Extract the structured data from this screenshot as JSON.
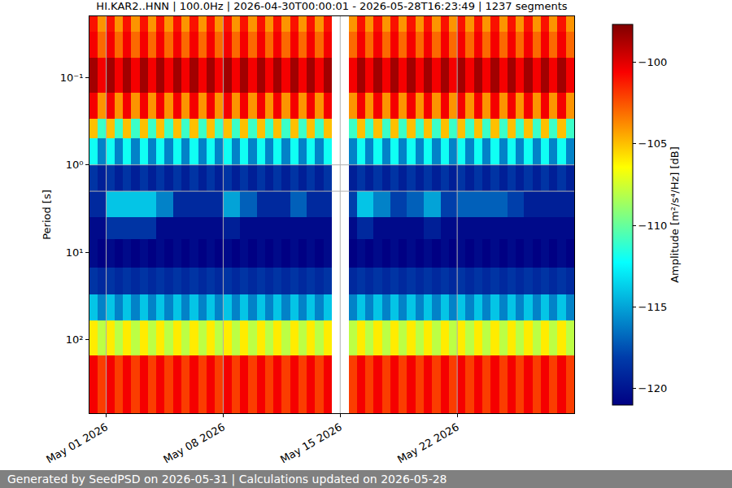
{
  "chart_data": {
    "type": "heatmap",
    "title": "HI.KAR2..HNN | 100.0Hz | 2026-04-30T00:00:01 - 2026-05-28T16:23:49 | 1237 segments",
    "y_label": "Period [s]",
    "footer": "Generated by SeedPSD on 2026-05-31 | Calculations updated on 2026-05-28",
    "log": "y",
    "grid": true,
    "xlim": [
      "2026-04-30 00:00",
      "2026-05-29 00:00"
    ],
    "xticks": [
      {
        "value": "2026-05-01",
        "label": "May 01 2026"
      },
      {
        "value": "2026-05-08",
        "label": "May 08 2026"
      },
      {
        "value": "2026-05-15",
        "label": "May 15 2026"
      },
      {
        "value": "2026-05-22",
        "label": "May 22 2026"
      }
    ],
    "ylim": [
      0.02,
      690
    ],
    "yticks": [
      {
        "value": 0.1,
        "label": "10⁻¹"
      },
      {
        "value": 1,
        "label": "10⁰"
      },
      {
        "value": 10,
        "label": "10¹"
      },
      {
        "value": 100,
        "label": "10²"
      }
    ],
    "colorbar": {
      "title": "Amplitude [m²/s⁴/Hz] [dB]",
      "zlim": [
        -121,
        -97.7
      ],
      "ticks": [
        -120,
        -115,
        -110,
        -105,
        -100
      ]
    },
    "x_edges": [
      "2026-04-30 00:00",
      "2026-04-30 12:00",
      "2026-05-01 00:00",
      "2026-05-01 12:00",
      "2026-05-02 00:00",
      "2026-05-02 12:00",
      "2026-05-03 00:00",
      "2026-05-03 12:00",
      "2026-05-04 00:00",
      "2026-05-04 12:00",
      "2026-05-05 00:00",
      "2026-05-05 12:00",
      "2026-05-06 00:00",
      "2026-05-06 12:00",
      "2026-05-07 00:00",
      "2026-05-07 12:00",
      "2026-05-08 00:00",
      "2026-05-08 12:00",
      "2026-05-09 00:00",
      "2026-05-09 12:00",
      "2026-05-10 00:00",
      "2026-05-10 12:00",
      "2026-05-11 00:00",
      "2026-05-11 12:00",
      "2026-05-12 00:00",
      "2026-05-12 12:00",
      "2026-05-13 00:00",
      "2026-05-13 12:00",
      "2026-05-14 00:00",
      "2026-05-14 12:00",
      "2026-05-15 00:00",
      "2026-05-15 12:00",
      "2026-05-16 00:00",
      "2026-05-16 12:00",
      "2026-05-17 00:00",
      "2026-05-17 12:00",
      "2026-05-18 00:00",
      "2026-05-18 12:00",
      "2026-05-19 00:00",
      "2026-05-19 12:00",
      "2026-05-20 00:00",
      "2026-05-20 12:00",
      "2026-05-21 00:00",
      "2026-05-21 12:00",
      "2026-05-22 00:00",
      "2026-05-22 12:00",
      "2026-05-23 00:00",
      "2026-05-23 12:00",
      "2026-05-24 00:00",
      "2026-05-24 12:00",
      "2026-05-25 00:00",
      "2026-05-25 12:00",
      "2026-05-26 00:00",
      "2026-05-26 12:00",
      "2026-05-27 00:00",
      "2026-05-27 12:00",
      "2026-05-28 00:00",
      "2026-05-28 12:00",
      "2026-05-29 00:00"
    ],
    "y_edges": [
      0.02,
      0.03,
      0.06,
      0.15,
      0.3,
      0.5,
      1,
      2,
      4,
      7,
      15,
      30,
      60,
      150,
      690
    ],
    "z": [
      [
        -101,
        -104,
        -101,
        -104,
        -101,
        -104,
        -101,
        -104,
        -101,
        -104,
        -101,
        -104,
        -101,
        -104,
        -101,
        -104,
        -101,
        -104,
        -101,
        -104,
        -101,
        -104,
        -101,
        -104,
        -101,
        -104,
        -101,
        -104,
        -101,
        null,
        null,
        -104,
        -101,
        -104,
        -101,
        -104,
        -101,
        -104,
        -101,
        -104,
        -101,
        -104,
        -101,
        -104,
        -101,
        -104,
        -101,
        -104,
        -101,
        -104,
        -101,
        -104,
        -101,
        -104,
        -101,
        -104,
        -101,
        -104
      ],
      [
        -100.5,
        -103,
        -100.5,
        -103,
        -100.5,
        -103,
        -100.5,
        -103,
        -100.5,
        -103,
        -100.5,
        -103,
        -100.5,
        -103,
        -100.5,
        -103,
        -100.5,
        -103,
        -100.5,
        -103,
        -100.5,
        -103,
        -100.5,
        -103,
        -100.5,
        -103,
        -100.5,
        -103,
        -100.5,
        null,
        null,
        -103,
        -100.5,
        -103,
        -100.5,
        -103,
        -100.5,
        -103,
        -100.5,
        -103,
        -100.5,
        -103,
        -100.5,
        -103,
        -100.5,
        -103,
        -100.5,
        -103,
        -100.5,
        -103,
        -100.5,
        -103,
        -100.5,
        -103,
        -100.5,
        -103,
        -100.5,
        -103
      ],
      [
        -98.5,
        -100.5,
        -98.5,
        -100.5,
        -98.5,
        -100.5,
        -98.5,
        -100.5,
        -98.5,
        -100.5,
        -98.5,
        -100.5,
        -98.5,
        -100.5,
        -98.5,
        -100.5,
        -98.5,
        -100.5,
        -98.5,
        -100.5,
        -98.5,
        -100.5,
        -98.5,
        -100.5,
        -98.5,
        -100.5,
        -98.5,
        -100.5,
        -98.5,
        null,
        null,
        -100.5,
        -98.5,
        -100.5,
        -98.5,
        -100.5,
        -98.5,
        -100.5,
        -98.5,
        -100.5,
        -98.5,
        -100.5,
        -98.5,
        -100.5,
        -98.5,
        -100.5,
        -98.5,
        -100.5,
        -98.5,
        -100.5,
        -98.5,
        -100.5,
        -98.5,
        -100.5,
        -98.5,
        -100.5,
        -98.5,
        -100.5
      ],
      [
        -100.5,
        -104,
        -100.5,
        -104,
        -100.5,
        -104,
        -100.5,
        -104,
        -100.5,
        -104,
        -100.5,
        -104,
        -100.5,
        -104,
        -100.5,
        -104,
        -100.5,
        -104,
        -100.5,
        -104,
        -100.5,
        -104,
        -100.5,
        -104,
        -100.5,
        -104,
        -100.5,
        -104,
        -100.5,
        null,
        null,
        -104,
        -100.5,
        -104,
        -100.5,
        -104,
        -100.5,
        -104,
        -100.5,
        -104,
        -100.5,
        -104,
        -100.5,
        -104,
        -100.5,
        -104,
        -100.5,
        -104,
        -100.5,
        -104,
        -100.5,
        -104,
        -100.5,
        -104,
        -100.5,
        -104,
        -100.5,
        -104
      ],
      [
        -105,
        -111,
        -105,
        -111,
        -105,
        -111,
        -105,
        -111,
        -105,
        -111,
        -105,
        -111,
        -105,
        -111,
        -105,
        -111,
        -105,
        -111,
        -105,
        -111,
        -105,
        -111,
        -105,
        -111,
        -105,
        -111,
        -105,
        -111,
        -105,
        null,
        null,
        -111,
        -105,
        -111,
        -105,
        -111,
        -105,
        -111,
        -105,
        -111,
        -105,
        -111,
        -105,
        -111,
        -105,
        -111,
        -105,
        -111,
        -105,
        -111,
        -105,
        -111,
        -105,
        -111,
        -105,
        -111,
        -105,
        -111
      ],
      [
        -112,
        -116,
        -112,
        -116,
        -112,
        -116,
        -112,
        -116,
        -112,
        -116,
        -112,
        -116,
        -112,
        -116,
        -112,
        -116,
        -112,
        -116,
        -112,
        -116,
        -112,
        -116,
        -112,
        -116,
        -112,
        -116,
        -112,
        -116,
        -112,
        null,
        null,
        -116,
        -112,
        -116,
        -112,
        -116,
        -112,
        -116,
        -112,
        -116,
        -112,
        -116,
        -112,
        -116,
        -112,
        -116,
        -112,
        -116,
        -112,
        -116,
        -112,
        -116,
        -112,
        -116,
        -112,
        -116,
        -112,
        -116
      ],
      [
        -118.5,
        -119.5,
        -118.5,
        -119.5,
        -118.5,
        -119.5,
        -118.5,
        -119.5,
        -118.5,
        -119.5,
        -118.5,
        -119.5,
        -118.5,
        -119.5,
        -118.5,
        -119.5,
        -118.5,
        -119.5,
        -118.5,
        -119.5,
        -118.5,
        -119.5,
        -118.5,
        -119.5,
        -118.5,
        -119.5,
        -118.5,
        -119.5,
        -118.5,
        null,
        null,
        -119.5,
        -118.5,
        -119.5,
        -118.5,
        -119.5,
        -118.5,
        -119.5,
        -118.5,
        -119.5,
        -118.5,
        -119.5,
        -118.5,
        -119.5,
        -118.5,
        -119.5,
        -118.5,
        -119.5,
        -118.5,
        -119.5,
        -118.5,
        -119.5,
        -118.5,
        -119.5,
        -118.5,
        -119.5,
        -118.5,
        -119.5
      ],
      [
        -119,
        -119,
        -114,
        -114,
        -114,
        -114,
        -114,
        -114,
        -116,
        -116,
        -119,
        -119,
        -119,
        -119,
        -119,
        -119,
        -115,
        -115,
        -117,
        -117,
        -119,
        -119,
        -119,
        -119,
        -117,
        -117,
        -119,
        -119,
        -119,
        null,
        null,
        -118,
        -114,
        -114,
        -116,
        -116,
        -118,
        -118,
        -117,
        -117,
        -115,
        -115,
        -118,
        -118,
        -117,
        -117,
        -117,
        -117,
        -117,
        -117,
        -118,
        -118,
        -119.5,
        -119.5,
        -119.5,
        -119.5,
        -119.5,
        -119.5
      ],
      [
        -120.5,
        -120.5,
        -118.5,
        -118.5,
        -118.5,
        -118.5,
        -118.5,
        -118.5,
        -120.5,
        -120.5,
        -120.5,
        -120.5,
        -120.5,
        -120.5,
        -120.5,
        -120.5,
        -119.5,
        -119.5,
        -120.5,
        -120.5,
        -120.5,
        -120.5,
        -120.5,
        -120.5,
        -120.5,
        -120.5,
        -120.5,
        -120.5,
        -120.5,
        null,
        null,
        -120.5,
        -119,
        -119,
        -120.5,
        -120.5,
        -120.5,
        -120.5,
        -120.5,
        -120.5,
        -119.5,
        -119.5,
        -120.5,
        -120.5,
        -120.5,
        -120.5,
        -120.5,
        -120.5,
        -120.5,
        -120.5,
        -120.5,
        -120.5,
        -120.5,
        -120.5,
        -120.5,
        -120.5,
        -120.5,
        -120.5
      ],
      [
        -120.5,
        -121,
        -120.5,
        -121,
        -120.5,
        -121,
        -120.5,
        -121,
        -120.5,
        -121,
        -120.5,
        -121,
        -120.5,
        -121,
        -120.5,
        -121,
        -120.5,
        -121,
        -120.5,
        -121,
        -120.5,
        -121,
        -120.5,
        -121,
        -120.5,
        -121,
        -120.5,
        -121,
        -120.5,
        null,
        null,
        -121,
        -120.5,
        -121,
        -120.5,
        -121,
        -120.5,
        -121,
        -120.5,
        -121,
        -120.5,
        -121,
        -120.5,
        -121,
        -120.5,
        -121,
        -120.5,
        -121,
        -120.5,
        -121,
        -120.5,
        -121,
        -120.5,
        -121,
        -120.5,
        -121,
        -120.5,
        -121
      ],
      [
        -118.5,
        -119,
        -118.5,
        -119,
        -118.5,
        -119,
        -118.5,
        -119,
        -118.5,
        -119,
        -118.5,
        -119,
        -118.5,
        -119,
        -118.5,
        -119,
        -118.5,
        -119,
        -118.5,
        -119,
        -118.5,
        -119,
        -118.5,
        -119,
        -118.5,
        -119,
        -118.5,
        -119,
        -118.5,
        null,
        null,
        -119,
        -118.5,
        -119,
        -118.5,
        -119,
        -118.5,
        -119,
        -118.5,
        -119,
        -118.5,
        -119,
        -118.5,
        -119,
        -118.5,
        -119,
        -118.5,
        -119,
        -118.5,
        -119,
        -118.5,
        -119,
        -118.5,
        -119,
        -118.5,
        -119,
        -118.5,
        -119
      ],
      [
        -114,
        -116,
        -114,
        -116,
        -114,
        -116,
        -114,
        -116,
        -114,
        -116,
        -114,
        -116,
        -114,
        -116,
        -114,
        -116,
        -114,
        -116,
        -114,
        -116,
        -114,
        -116,
        -114,
        -116,
        -114,
        -116,
        -114,
        -116,
        -114,
        null,
        null,
        -116,
        -114,
        -116,
        -114,
        -116,
        -114,
        -116,
        -114,
        -116,
        -114,
        -116,
        -114,
        -116,
        -114,
        -116,
        -114,
        -116,
        -114,
        -116,
        -114,
        -116,
        -114,
        -116,
        -114,
        -116,
        -114,
        -116
      ],
      [
        -106,
        -108,
        -106,
        -108,
        -106,
        -108,
        -106,
        -108,
        -106,
        -108,
        -106,
        -108,
        -106,
        -108,
        -106,
        -108,
        -106,
        -108,
        -106,
        -108,
        -106,
        -108,
        -106,
        -108,
        -106,
        -108,
        -106,
        -108,
        -106,
        null,
        null,
        -108,
        -106,
        -108,
        -106,
        -108,
        -106,
        -108,
        -106,
        -108,
        -106,
        -108,
        -106,
        -108,
        -106,
        -108,
        -106,
        -108,
        -106,
        -108,
        -106,
        -108,
        -106,
        -108,
        -106,
        -108,
        -106,
        -108
      ],
      [
        -100.5,
        -102,
        -100.5,
        -102,
        -100.5,
        -102,
        -100.5,
        -102,
        -100.5,
        -102,
        -100.5,
        -102,
        -100.5,
        -102,
        -100.5,
        -102,
        -100.5,
        -102,
        -100.5,
        -102,
        -100.5,
        -102,
        -100.5,
        -102,
        -100.5,
        -102,
        -100.5,
        -102,
        -100.5,
        null,
        null,
        -102,
        -100.5,
        -102,
        -100.5,
        -102,
        -100.5,
        -102,
        -100.5,
        -102,
        -100.5,
        -102,
        -100.5,
        -102,
        -100.5,
        -102,
        -100.5,
        -102,
        -100.5,
        -102,
        -100.5,
        -102,
        -100.5,
        -102,
        -100.5,
        -102,
        -100.5,
        -102
      ]
    ]
  }
}
